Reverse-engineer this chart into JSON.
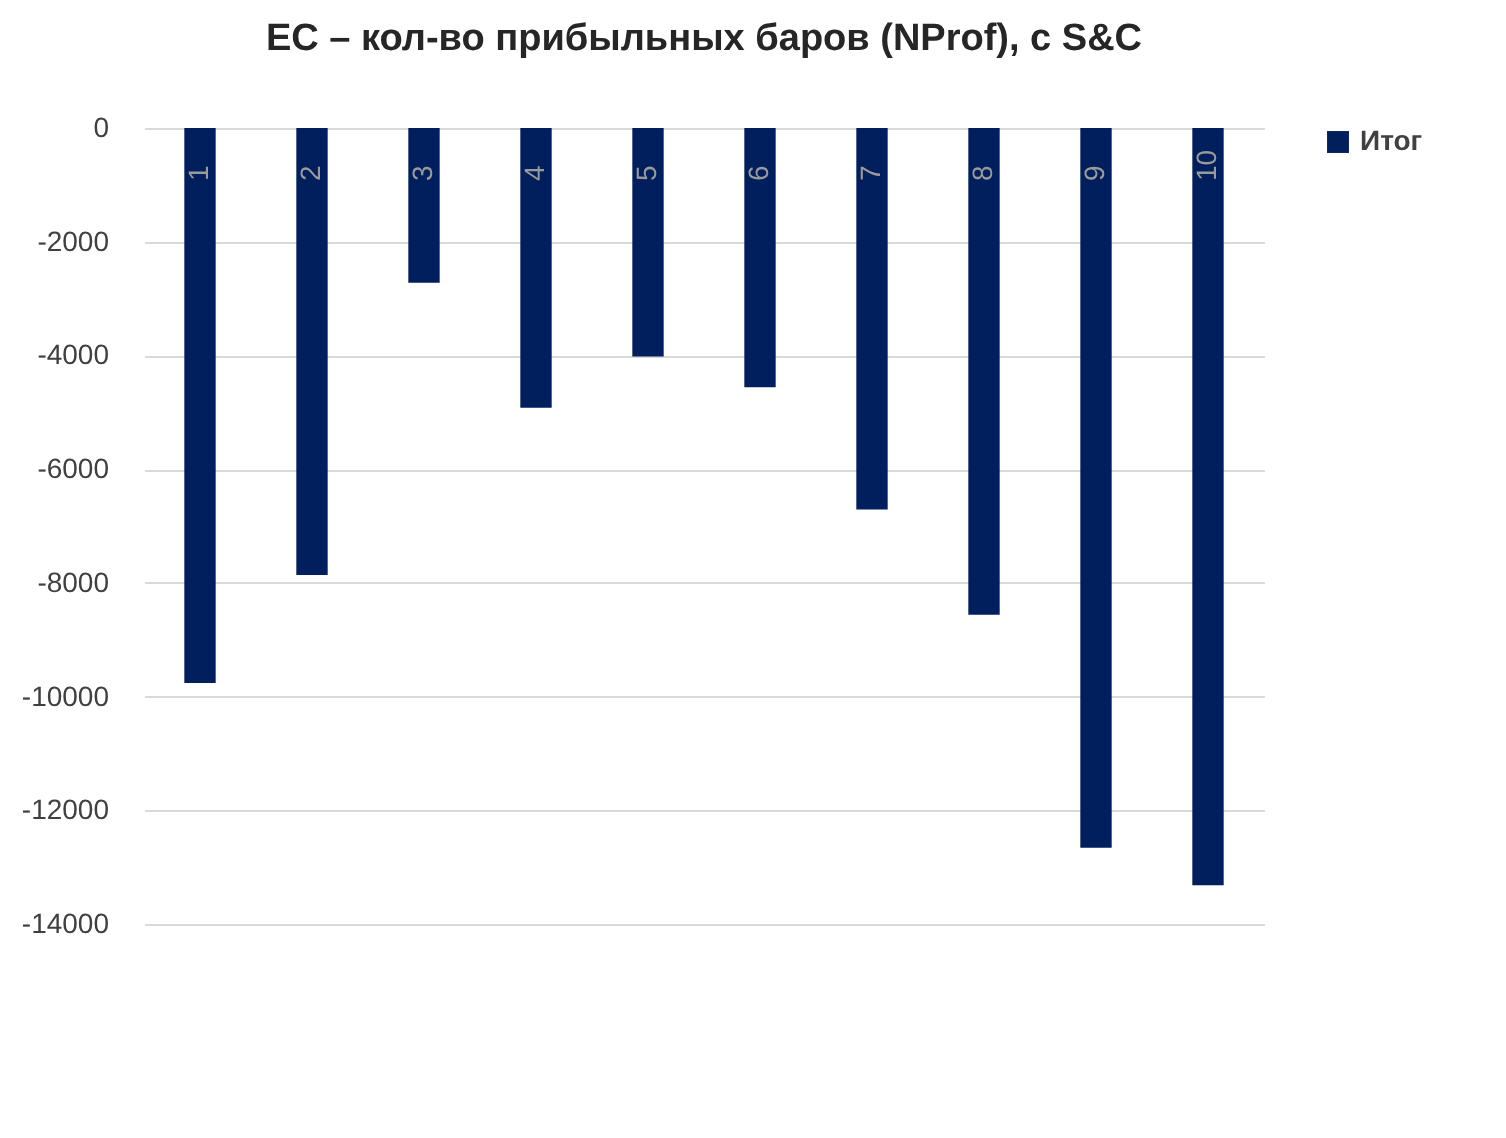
{
  "chart_data": {
    "type": "bar",
    "title": "ЕС – кол-во прибыльных баров (NProf), с S&C",
    "categories": [
      "1",
      "2",
      "3",
      "4",
      "5",
      "6",
      "7",
      "8",
      "9",
      "10"
    ],
    "series": [
      {
        "name": "Итог",
        "color": "#001f5c",
        "values": [
          -9760,
          -7860,
          -2720,
          -4920,
          -4020,
          -4560,
          -6710,
          -8560,
          -12660,
          -13320
        ]
      }
    ],
    "ylim": [
      -14000,
      0
    ],
    "yticks": [
      -14000,
      -12000,
      -10000,
      -8000,
      -6000,
      -4000,
      -2000,
      0
    ],
    "grid": "y",
    "legend": "right"
  }
}
